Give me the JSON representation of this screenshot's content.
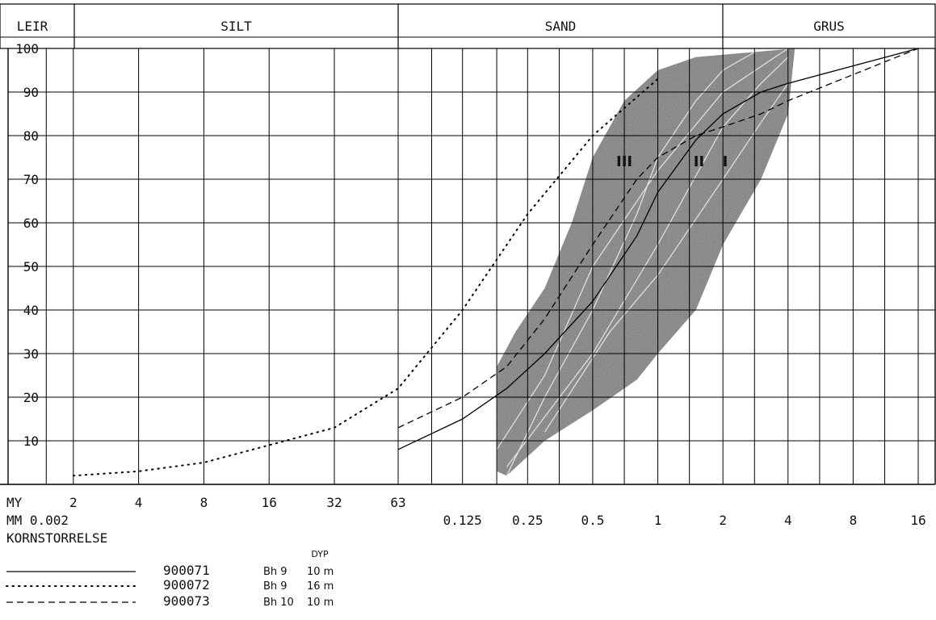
{
  "chart_data": {
    "type": "line",
    "title": "",
    "header_bands": [
      "LEIR",
      "SILT",
      "SAND",
      "GRUS"
    ],
    "ylim": [
      0,
      100
    ],
    "y_ticks": [
      10,
      20,
      30,
      40,
      50,
      60,
      70,
      80,
      90,
      100
    ],
    "x_scale": "log",
    "x_unit_label_my": "MY",
    "x_unit_label_mm": "MM",
    "xlabel": "KORNSTORRELSE",
    "x_ticks_my": [
      "2",
      "4",
      "8",
      "16",
      "32",
      "63"
    ],
    "x_ticks_mm": [
      "0.002",
      "0.125",
      "0.25",
      "0.5",
      "1",
      "2",
      "4",
      "8",
      "16"
    ],
    "envelope_labels": [
      "III",
      "II",
      "I"
    ],
    "series": [
      {
        "name": "900071",
        "style": "solid",
        "x": [
          0.063,
          0.125,
          0.2,
          0.3,
          0.5,
          0.8,
          1,
          1.5,
          2,
          3,
          4,
          16
        ],
        "y": [
          8,
          15,
          22,
          30,
          42,
          57,
          67,
          79,
          85,
          90,
          92,
          100
        ]
      },
      {
        "name": "900072",
        "style": "dotted",
        "x": [
          0.002,
          0.004,
          0.008,
          0.016,
          0.032,
          0.063,
          0.125,
          0.25,
          0.5,
          1
        ],
        "y": [
          2,
          3,
          5,
          9,
          13,
          22,
          40,
          62,
          80,
          93
        ]
      },
      {
        "name": "900073",
        "style": "dashed",
        "x": [
          0.063,
          0.125,
          0.2,
          0.3,
          0.5,
          0.8,
          1,
          1.5,
          2,
          3,
          4,
          16
        ],
        "y": [
          13,
          20,
          27,
          38,
          55,
          70,
          75,
          80,
          82,
          85,
          88,
          100
        ]
      }
    ],
    "legend": {
      "depth_header": "DYP",
      "entries": [
        {
          "sample": "900071",
          "hole": "Bh 9",
          "depth": "10 m"
        },
        {
          "sample": "900072",
          "hole": "Bh 9",
          "depth": "16 m"
        },
        {
          "sample": "900073",
          "hole": "Bh 10",
          "depth": "10 m"
        }
      ]
    },
    "colors": {
      "envelope": "#6e6e6e",
      "grid": "#000000",
      "curve": "#000000"
    }
  }
}
